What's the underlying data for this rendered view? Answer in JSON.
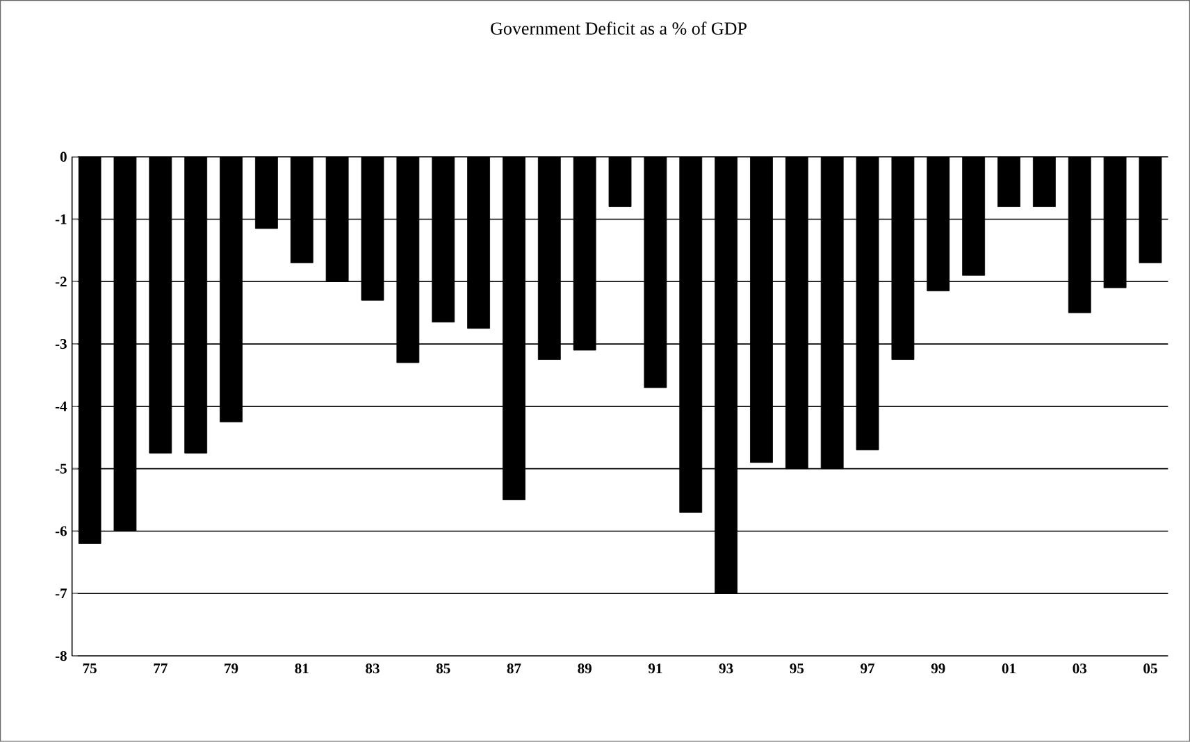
{
  "chart_data": {
    "type": "bar",
    "title": "Government Deficit as a % of GDP",
    "categories": [
      "75",
      null,
      "77",
      null,
      "79",
      null,
      "81",
      null,
      "83",
      null,
      "85",
      null,
      "87",
      null,
      "89",
      null,
      "91",
      null,
      "93",
      null,
      "95",
      null,
      "97",
      null,
      "99",
      null,
      "01",
      null,
      "03",
      null,
      "05"
    ],
    "values": [
      -6.2,
      -6.0,
      -4.75,
      -4.75,
      -4.25,
      -1.15,
      -1.7,
      -2.0,
      -2.3,
      -3.3,
      -2.65,
      -2.75,
      -5.5,
      -3.25,
      -3.1,
      -0.8,
      -3.7,
      -5.7,
      -7.0,
      -4.9,
      -5.0,
      -5.0,
      -4.7,
      -3.25,
      -2.15,
      -1.9,
      -0.8,
      -0.8,
      -2.5,
      -2.1,
      -1.7
    ],
    "color": "#000000",
    "ylim": [
      -8,
      0
    ],
    "yticks": [
      -8,
      -7,
      -6,
      -5,
      -4,
      -3,
      -2,
      -1,
      0
    ],
    "grid": "y"
  }
}
